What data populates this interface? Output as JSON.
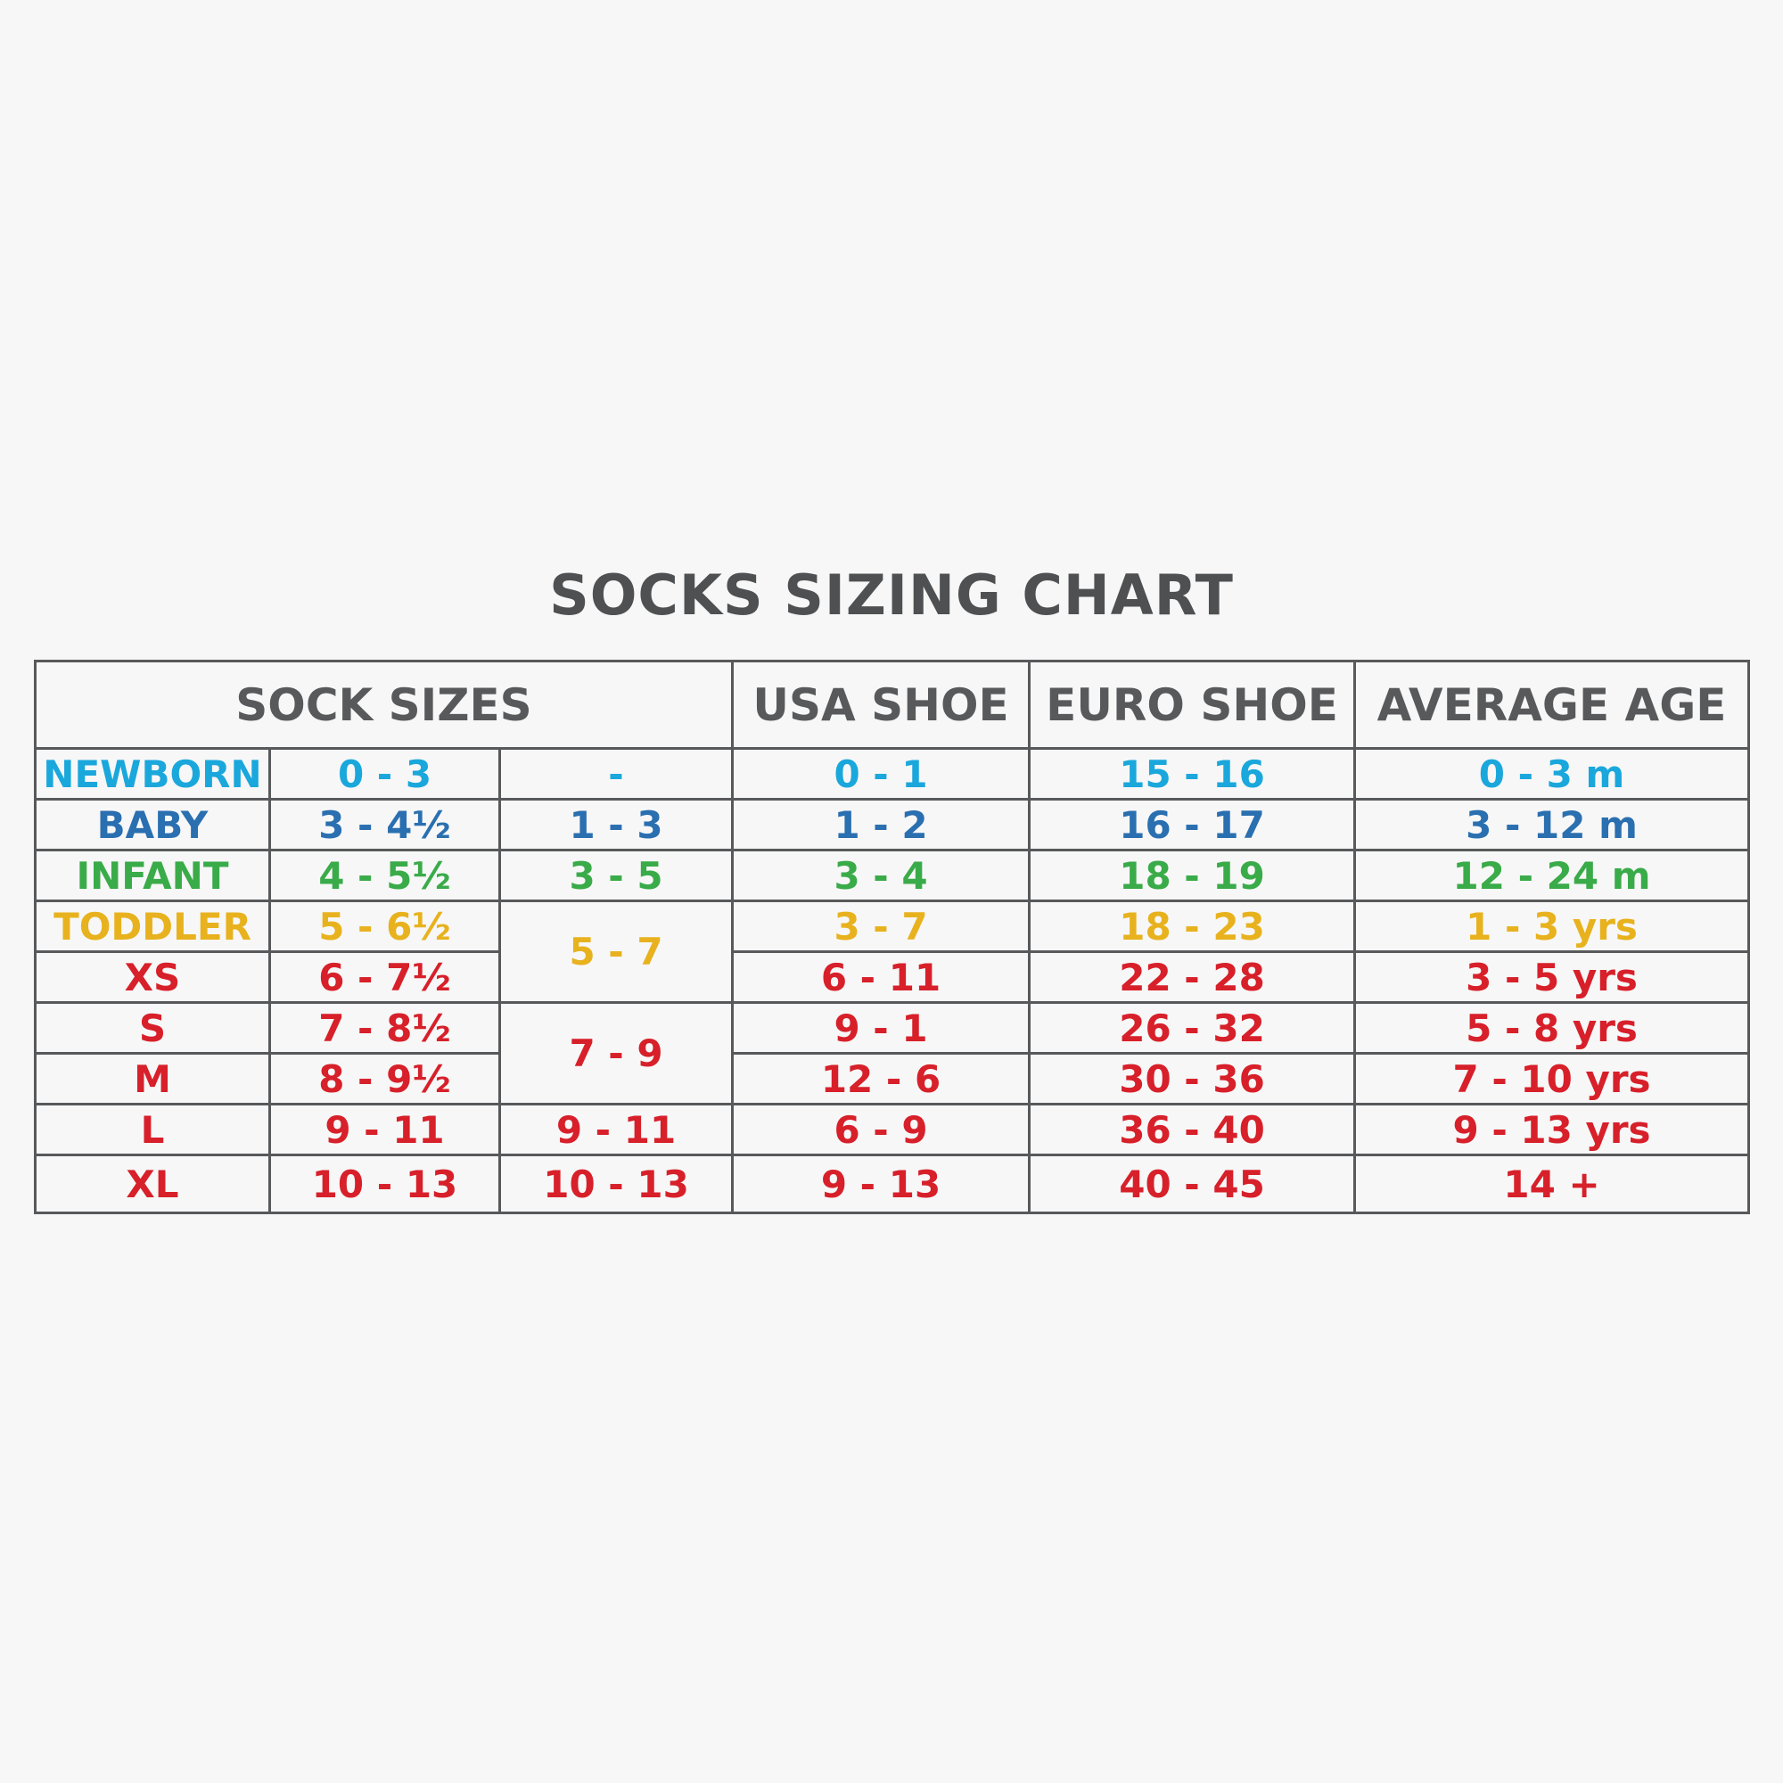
{
  "title": "SOCKS SIZING CHART",
  "colors": {
    "heading": "#58595b",
    "newborn": "#1aa7dc",
    "baby": "#2a6fb0",
    "infant": "#3aab49",
    "toddler": "#e8b21e",
    "adult": "#d7202a",
    "background": "#f7f7f7"
  },
  "headers": {
    "sock_sizes": "SOCK SIZES",
    "usa_shoe": "USA SHOE",
    "euro_shoe": "EURO SHOE",
    "average_age": "AVERAGE AGE"
  },
  "rows": [
    {
      "size": "NEWBORN",
      "sock": "0 - 3",
      "usa": "0 - 1",
      "euro": "15 - 16",
      "age": "0 - 3 m"
    },
    {
      "size": "BABY",
      "sock": "3 - 4½",
      "usa": "1 - 2",
      "euro": "16 - 17",
      "age": "3 - 12 m"
    },
    {
      "size": "INFANT",
      "sock": "4 - 5½",
      "usa": "3 - 4",
      "euro": "18 - 19",
      "age": "12 - 24 m"
    },
    {
      "size": "TODDLER",
      "sock": "5 - 6½",
      "usa": "3 - 7",
      "euro": "18 - 23",
      "age": "1 - 3 yrs"
    },
    {
      "size": "XS",
      "sock": "6 - 7½",
      "usa": "6 - 11",
      "euro": "22 - 28",
      "age": "3 - 5 yrs"
    },
    {
      "size": "S",
      "sock": "7 - 8½",
      "usa": "9 - 1",
      "euro": "26 - 32",
      "age": "5 - 8 yrs"
    },
    {
      "size": "M",
      "sock": "8 - 9½",
      "usa": "12 - 6",
      "euro": "30 - 36",
      "age": "7 - 10 yrs"
    },
    {
      "size": "L",
      "sock": "9 - 11",
      "usa": "6 - 9",
      "euro": "36 - 40",
      "age": "9 - 13 yrs"
    },
    {
      "size": "XL",
      "sock": "10 - 13",
      "usa": "9 - 13",
      "euro": "40 - 45",
      "age": "14 +"
    }
  ],
  "grouped_sock": {
    "newborn": "-",
    "baby": "1 - 3",
    "infant": "3 - 5",
    "toddler_xs": "5 - 7",
    "s_m": "7 - 9",
    "l": "9 - 11",
    "xl": "10 - 13"
  }
}
